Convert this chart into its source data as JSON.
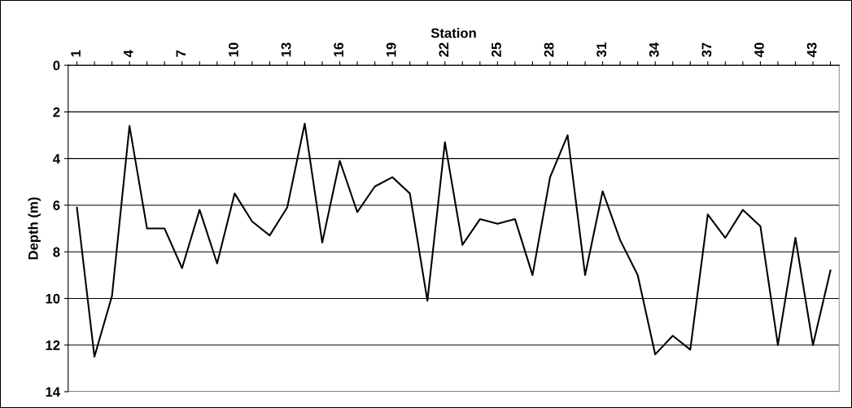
{
  "chart_data": {
    "type": "line",
    "xlabel": "Station",
    "ylabel": "Depth (m)",
    "categories": [
      "1",
      null,
      null,
      "4",
      null,
      null,
      "7",
      null,
      null,
      "10",
      null,
      null,
      "13",
      null,
      null,
      "16",
      null,
      null,
      "19",
      null,
      null,
      "22",
      null,
      null,
      "25",
      null,
      null,
      "28",
      null,
      null,
      "31",
      null,
      null,
      "34",
      null,
      null,
      "37",
      null,
      null,
      "40",
      null,
      null,
      "43",
      null
    ],
    "series": [
      {
        "color": "#000000",
        "values": [
          6.1,
          12.5,
          9.9,
          2.6,
          7.0,
          7.0,
          8.7,
          6.2,
          8.5,
          5.5,
          6.7,
          7.3,
          6.1,
          2.5,
          7.6,
          4.1,
          6.3,
          5.2,
          4.8,
          5.5,
          10.1,
          3.3,
          7.7,
          6.6,
          6.8,
          6.6,
          9.0,
          4.8,
          3.0,
          9.0,
          5.4,
          7.5,
          9.0,
          12.4,
          11.6,
          12.2,
          6.4,
          7.4,
          6.2,
          6.9,
          12.0,
          7.4,
          12.0,
          8.8
        ]
      }
    ],
    "ylim": [
      14,
      0
    ],
    "yticks": [
      0,
      2,
      4,
      6,
      8,
      10,
      12,
      14
    ],
    "grid": "y",
    "marker": "none",
    "line_style": "solid"
  }
}
